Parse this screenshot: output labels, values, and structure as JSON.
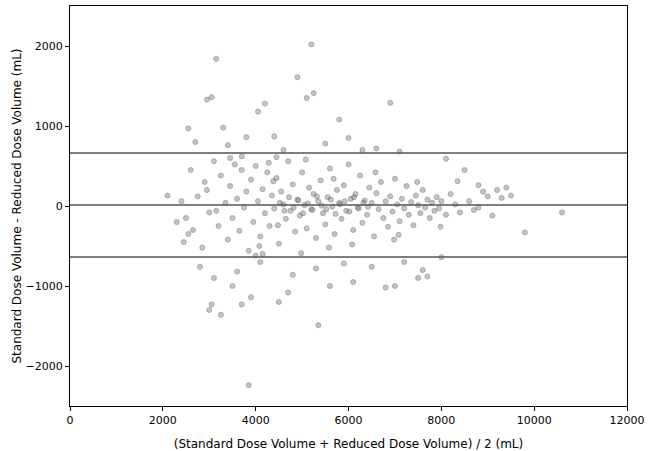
{
  "chart_data": {
    "type": "scatter",
    "x_label": "(Standard Dose Volume + Reduced Dose Volume) / 2 (mL)",
    "y_label": "Standard Dose Volume - Reduced Dose Volume (mL)",
    "xlim": [
      0,
      12000
    ],
    "xticks": [
      0,
      2000,
      4000,
      6000,
      8000,
      10000,
      12000
    ],
    "ylim": [
      -2500,
      2500
    ],
    "yticks": [
      -2000,
      -1000,
      0,
      1000,
      2000
    ],
    "grid": false,
    "series": [
      {
        "type": "scatter",
        "marker": "circle",
        "color": "#7f7f7f",
        "x": [
          3150,
          5200,
          3850,
          5350,
          4900,
          5100,
          5250,
          2950,
          3050,
          4200,
          4050,
          6900,
          5800,
          2550,
          3300,
          9800,
          10600,
          2100,
          3000,
          3050,
          3250,
          3500,
          3700,
          3900,
          4500,
          4700,
          5600,
          6100,
          6800,
          7000,
          7500,
          7700,
          8000,
          8100,
          8500,
          9200,
          9300,
          8700,
          2300,
          2500,
          2700,
          3400,
          3800,
          4400,
          4600,
          5500,
          6000,
          6300,
          6600,
          7100,
          2800,
          3100,
          3600,
          4100,
          4800,
          5300,
          5900,
          6500,
          7200,
          7600,
          2600,
          2650,
          2750,
          2850,
          2900,
          3000,
          3100,
          3200,
          3250,
          3350,
          3400,
          3450,
          3500,
          3550,
          3600,
          3650,
          3700,
          3750,
          3800,
          3850,
          3900,
          3950,
          4000,
          4050,
          4100,
          4150,
          4200,
          4250,
          4300,
          4350,
          4400,
          4450,
          4500,
          4550,
          4600,
          4650,
          4700,
          4750,
          4800,
          4850,
          4900,
          4950,
          5000,
          5050,
          5100,
          5150,
          5200,
          5250,
          5300,
          5350,
          5400,
          5450,
          5500,
          5550,
          5600,
          5650,
          5700,
          5750,
          5800,
          5850,
          5900,
          5950,
          6000,
          6050,
          6100,
          6150,
          6200,
          6250,
          6300,
          6350,
          6400,
          6450,
          6500,
          6550,
          6600,
          6650,
          6700,
          6750,
          6800,
          6850,
          6900,
          6950,
          7000,
          7050,
          7100,
          7150,
          7200,
          7250,
          7300,
          7350,
          7400,
          7450,
          7500,
          7550,
          7600,
          7650,
          7700,
          7750,
          7800,
          7850,
          7900,
          7950,
          8000,
          8100,
          8200,
          8300,
          8400,
          8600,
          8800,
          9000,
          4520,
          4620,
          4720,
          4820,
          4920,
          5020,
          5120,
          5220,
          5320,
          5420,
          5520,
          5620,
          5720,
          5820,
          5920,
          6020,
          6120,
          6220,
          6320,
          6420,
          2400,
          2450,
          2550,
          2950,
          3150,
          3450,
          4080,
          4280,
          4380,
          4480,
          5080,
          5580,
          5680,
          6080,
          6580,
          6980,
          7080,
          7480,
          7980,
          8900,
          9100,
          9400,
          9500,
          8800,
          8350,
          3700,
          4000,
          4150,
          4450,
          4980
        ],
        "values": [
          1840,
          2020,
          -2240,
          -1490,
          1610,
          1350,
          1410,
          1330,
          1360,
          1280,
          1180,
          1290,
          1080,
          970,
          980,
          -330,
          -80,
          130,
          -1300,
          -1230,
          -1360,
          -1000,
          -1230,
          -1140,
          -1200,
          -1080,
          -1000,
          -950,
          -1020,
          -1000,
          -900,
          -880,
          -640,
          590,
          450,
          200,
          100,
          -50,
          -200,
          -150,
          800,
          760,
          860,
          870,
          700,
          780,
          850,
          700,
          720,
          680,
          -760,
          -900,
          -820,
          -700,
          -860,
          -780,
          -720,
          -760,
          -700,
          -800,
          450,
          -300,
          120,
          -520,
          300,
          -80,
          560,
          -250,
          380,
          40,
          -420,
          250,
          -150,
          520,
          90,
          -310,
          450,
          -20,
          180,
          -560,
          330,
          -200,
          500,
          60,
          -380,
          210,
          -90,
          420,
          -250,
          130,
          -30,
          350,
          -470,
          180,
          20,
          -160,
          560,
          -60,
          270,
          -320,
          80,
          -120,
          420,
          10,
          -280,
          230,
          -40,
          150,
          -400,
          60,
          320,
          -90,
          -230,
          110,
          470,
          -10,
          -350,
          200,
          40,
          -160,
          260,
          -60,
          520,
          90,
          -300,
          150,
          -20,
          380,
          -210,
          70,
          -110,
          230,
          40,
          -380,
          160,
          -40,
          300,
          -150,
          60,
          -260,
          120,
          -70,
          340,
          20,
          -190,
          90,
          -30,
          250,
          -110,
          50,
          -240,
          130,
          10,
          -90,
          200,
          -20,
          80,
          -150,
          40,
          -60,
          110,
          -30,
          60,
          -110,
          150,
          20,
          -80,
          60,
          -20,
          120,
          40,
          -60,
          110,
          -20,
          70,
          -90,
          30,
          -50,
          120,
          5,
          -40,
          80,
          -100,
          20,
          60,
          -70,
          110,
          -30,
          40,
          -10,
          60,
          -450,
          -350,
          200,
          -60,
          600,
          -500,
          540,
          310,
          -240,
          580,
          -520,
          340,
          -480,
          420,
          -420,
          -360,
          300,
          -260,
          180,
          -120,
          230,
          130,
          260,
          310,
          620,
          -620,
          -600,
          610,
          -590
        ]
      },
      {
        "type": "line",
        "line_style": "solid",
        "color": "#555555",
        "x": [
          0,
          12000
        ],
        "values": [
          663,
          663
        ]
      },
      {
        "type": "line",
        "line_style": "solid",
        "color": "#555555",
        "x": [
          0,
          12000
        ],
        "values": [
          12,
          12
        ]
      },
      {
        "type": "line",
        "line_style": "solid",
        "color": "#555555",
        "x": [
          0,
          12000
        ],
        "values": [
          -637,
          -637
        ]
      }
    ]
  }
}
